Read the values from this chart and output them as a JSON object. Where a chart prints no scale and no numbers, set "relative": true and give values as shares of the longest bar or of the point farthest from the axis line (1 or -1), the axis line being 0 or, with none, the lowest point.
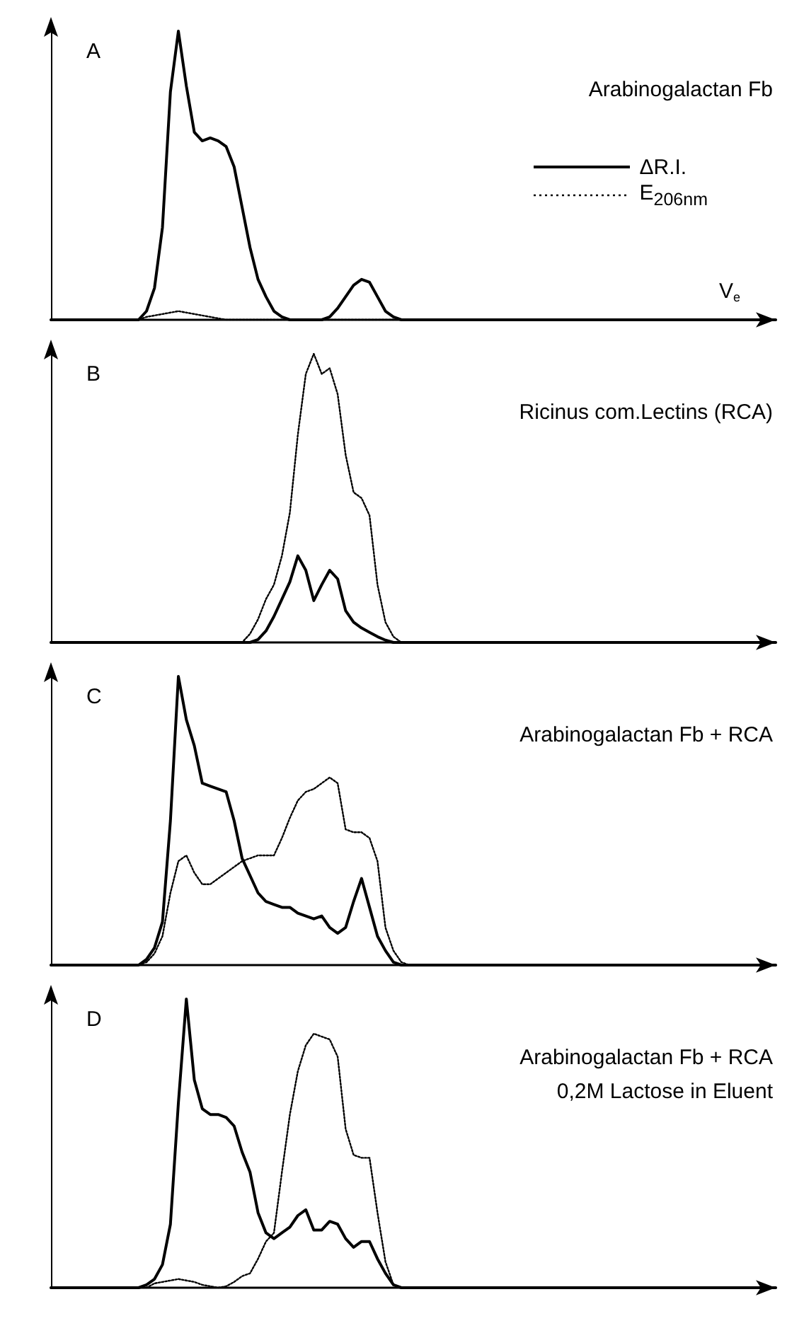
{
  "chart_data": [
    {
      "type": "line",
      "title": "A",
      "annotations": [
        "Arabinogalactan Fb"
      ],
      "xlabel": "V$_{e}$",
      "relative": true,
      "marker": "none",
      "legend": "right",
      "categories": [
        null,
        null,
        null,
        null,
        null,
        null,
        null,
        null,
        null,
        null,
        null,
        null,
        null,
        null,
        null,
        null,
        null,
        null,
        null,
        null,
        null,
        null,
        null,
        null,
        null,
        null,
        null,
        null,
        null,
        null,
        null,
        null,
        null,
        null,
        null,
        null,
        null,
        null,
        null,
        null,
        null,
        null,
        null,
        null,
        null,
        null,
        null,
        null,
        null,
        null,
        null,
        null,
        null,
        null,
        null,
        null,
        null,
        null,
        null,
        null,
        null,
        null,
        null,
        null,
        null,
        null,
        null,
        null,
        null,
        null,
        null,
        null,
        null,
        null,
        null,
        null,
        null,
        null,
        null,
        null,
        null,
        null,
        null,
        null,
        null,
        null,
        null,
        null,
        null,
        null,
        null,
        null
      ],
      "series": [
        {
          "name": "ΔR.I.",
          "color": "#000000",
          "line_style": "solid",
          "values": [
            0,
            0,
            0,
            0,
            0,
            0,
            0,
            0,
            0,
            0,
            0,
            0,
            0.03,
            0.11,
            0.32,
            0.79,
            1,
            0.81,
            0.65,
            0.62,
            0.63,
            0.62,
            0.6,
            0.53,
            0.39,
            0.25,
            0.14,
            0.08,
            0.03,
            0.01,
            0,
            0,
            0,
            0,
            0,
            0.01,
            0.04,
            0.08,
            0.12,
            0.14,
            0.13,
            0.08,
            0.03,
            0.01,
            0,
            0,
            0,
            0,
            0,
            0,
            0,
            0,
            0,
            0,
            0,
            0,
            0,
            0,
            0,
            0,
            0,
            0,
            0,
            0,
            0,
            0,
            0,
            0,
            0,
            0,
            0,
            0,
            0,
            0,
            0,
            0,
            0,
            0,
            0,
            0,
            0,
            0,
            0,
            0,
            0,
            0,
            0,
            0,
            0,
            0,
            0,
            0
          ]
        },
        {
          "name": "E$_{206nm}$",
          "color": "#000000",
          "line_style": "dotted",
          "values": [
            0,
            0,
            0,
            0,
            0,
            0,
            0,
            0,
            0,
            0,
            0,
            0,
            0.01,
            0.015,
            0.02,
            0.025,
            0.03,
            0.025,
            0.02,
            0.015,
            0.01,
            0.005,
            0,
            0,
            0,
            0,
            0,
            0,
            0,
            0,
            0,
            0,
            0,
            0,
            0,
            0,
            0,
            0,
            0,
            0,
            0,
            0,
            0,
            0,
            0,
            0,
            0,
            0,
            0,
            0,
            0,
            0,
            0,
            0,
            0,
            0,
            0,
            0,
            0,
            0,
            0,
            0,
            0,
            0,
            0,
            0,
            0,
            0,
            0,
            0,
            0,
            0,
            0,
            0,
            0,
            0,
            0,
            0,
            0,
            0,
            0,
            0,
            0,
            0,
            0,
            0,
            0,
            0,
            0,
            0,
            0,
            0
          ]
        }
      ]
    },
    {
      "type": "line",
      "title": "B",
      "annotations": [
        "Ricinus com.Lectins (RCA)"
      ],
      "relative": true,
      "marker": "none",
      "categories": [
        null,
        null,
        null,
        null,
        null,
        null,
        null,
        null,
        null,
        null,
        null,
        null,
        null,
        null,
        null,
        null,
        null,
        null,
        null,
        null,
        null,
        null,
        null,
        null,
        null,
        null,
        null,
        null,
        null,
        null,
        null,
        null,
        null,
        null,
        null,
        null,
        null,
        null,
        null,
        null,
        null,
        null,
        null,
        null,
        null,
        null,
        null,
        null,
        null,
        null,
        null,
        null,
        null,
        null,
        null,
        null,
        null,
        null,
        null,
        null,
        null,
        null,
        null,
        null,
        null,
        null,
        null,
        null,
        null,
        null,
        null,
        null,
        null,
        null,
        null,
        null,
        null,
        null,
        null,
        null,
        null,
        null,
        null,
        null,
        null,
        null,
        null,
        null,
        null,
        null,
        null,
        null
      ],
      "series": [
        {
          "color": "#000000",
          "line_style": "solid",
          "values": [
            0,
            0,
            0,
            0,
            0,
            0,
            0,
            0,
            0,
            0,
            0,
            0,
            0,
            0,
            0,
            0,
            0,
            0,
            0,
            0,
            0,
            0,
            0,
            0,
            0,
            0,
            0.01,
            0.04,
            0.09,
            0.15,
            0.21,
            0.3,
            0.25,
            0.145,
            0.2,
            0.25,
            0.22,
            0.11,
            0.07,
            0.05,
            0.035,
            0.02,
            0.008,
            0,
            0,
            0,
            0,
            0,
            0,
            0,
            0,
            0,
            0,
            0,
            0,
            0,
            0,
            0,
            0,
            0,
            0,
            0,
            0,
            0,
            0,
            0,
            0,
            0,
            0,
            0,
            0,
            0,
            0,
            0,
            0,
            0,
            0,
            0,
            0,
            0,
            0,
            0,
            0,
            0,
            0,
            0,
            0,
            0,
            0,
            0,
            0,
            0
          ]
        },
        {
          "color": "#000000",
          "line_style": "dotted",
          "values": [
            0,
            0,
            0,
            0,
            0,
            0,
            0,
            0,
            0,
            0,
            0,
            0,
            0,
            0,
            0,
            0,
            0,
            0,
            0,
            0,
            0,
            0,
            0,
            0,
            0,
            0.03,
            0.08,
            0.15,
            0.2,
            0.3,
            0.45,
            0.72,
            0.93,
            1,
            0.93,
            0.95,
            0.86,
            0.65,
            0.52,
            0.5,
            0.44,
            0.2,
            0.07,
            0.02,
            0,
            0,
            0,
            0,
            0,
            0,
            0,
            0,
            0,
            0,
            0,
            0,
            0,
            0,
            0,
            0,
            0,
            0,
            0,
            0,
            0,
            0,
            0,
            0,
            0,
            0,
            0,
            0,
            0,
            0,
            0,
            0,
            0,
            0,
            0,
            0,
            0,
            0,
            0,
            0,
            0,
            0,
            0,
            0,
            0,
            0,
            0,
            0
          ]
        }
      ]
    },
    {
      "type": "line",
      "title": "C",
      "annotations": [
        "Arabinogalactan Fb + RCA"
      ],
      "relative": true,
      "marker": "none",
      "categories": [
        null,
        null,
        null,
        null,
        null,
        null,
        null,
        null,
        null,
        null,
        null,
        null,
        null,
        null,
        null,
        null,
        null,
        null,
        null,
        null,
        null,
        null,
        null,
        null,
        null,
        null,
        null,
        null,
        null,
        null,
        null,
        null,
        null,
        null,
        null,
        null,
        null,
        null,
        null,
        null,
        null,
        null,
        null,
        null,
        null,
        null,
        null,
        null,
        null,
        null,
        null,
        null,
        null,
        null,
        null,
        null,
        null,
        null,
        null,
        null,
        null,
        null,
        null,
        null,
        null,
        null,
        null,
        null,
        null,
        null,
        null,
        null,
        null,
        null,
        null,
        null,
        null,
        null,
        null,
        null,
        null,
        null,
        null,
        null,
        null,
        null,
        null,
        null,
        null,
        null,
        null,
        null
      ],
      "series": [
        {
          "color": "#000000",
          "line_style": "solid",
          "values": [
            0,
            0,
            0,
            0,
            0,
            0,
            0,
            0,
            0,
            0,
            0,
            0,
            0.02,
            0.06,
            0.15,
            0.5,
            1,
            0.85,
            0.76,
            0.63,
            0.62,
            0.61,
            0.6,
            0.5,
            0.37,
            0.31,
            0.25,
            0.22,
            0.21,
            0.2,
            0.2,
            0.18,
            0.17,
            0.16,
            0.17,
            0.13,
            0.11,
            0.13,
            0.22,
            0.3,
            0.2,
            0.1,
            0.05,
            0.01,
            0,
            0,
            0,
            0,
            0,
            0,
            0,
            0,
            0,
            0,
            0,
            0,
            0,
            0,
            0,
            0,
            0,
            0,
            0,
            0,
            0,
            0,
            0,
            0,
            0,
            0,
            0,
            0,
            0,
            0,
            0,
            0,
            0,
            0,
            0,
            0,
            0,
            0,
            0,
            0,
            0,
            0,
            0,
            0,
            0,
            0,
            0,
            0
          ]
        },
        {
          "color": "#000000",
          "line_style": "dotted",
          "values": [
            0,
            0,
            0,
            0,
            0,
            0,
            0,
            0,
            0,
            0,
            0,
            0,
            0.01,
            0.04,
            0.1,
            0.25,
            0.36,
            0.38,
            0.32,
            0.28,
            0.28,
            0.3,
            0.32,
            0.34,
            0.36,
            0.37,
            0.38,
            0.38,
            0.38,
            0.44,
            0.51,
            0.57,
            0.6,
            0.61,
            0.63,
            0.65,
            0.63,
            0.47,
            0.46,
            0.46,
            0.44,
            0.36,
            0.13,
            0.05,
            0.01,
            0,
            0,
            0,
            0,
            0,
            0,
            0,
            0,
            0,
            0,
            0,
            0,
            0,
            0,
            0,
            0,
            0,
            0,
            0,
            0,
            0,
            0,
            0,
            0,
            0,
            0,
            0,
            0,
            0,
            0,
            0,
            0,
            0,
            0,
            0,
            0,
            0,
            0,
            0,
            0,
            0,
            0,
            0,
            0,
            0,
            0,
            0
          ]
        }
      ]
    },
    {
      "type": "line",
      "title": "D",
      "annotations": [
        "Arabinogalactan Fb + RCA",
        "0,2M Lactose in Eluent"
      ],
      "relative": true,
      "marker": "none",
      "categories": [
        null,
        null,
        null,
        null,
        null,
        null,
        null,
        null,
        null,
        null,
        null,
        null,
        null,
        null,
        null,
        null,
        null,
        null,
        null,
        null,
        null,
        null,
        null,
        null,
        null,
        null,
        null,
        null,
        null,
        null,
        null,
        null,
        null,
        null,
        null,
        null,
        null,
        null,
        null,
        null,
        null,
        null,
        null,
        null,
        null,
        null,
        null,
        null,
        null,
        null,
        null,
        null,
        null,
        null,
        null,
        null,
        null,
        null,
        null,
        null,
        null,
        null,
        null,
        null,
        null,
        null,
        null,
        null,
        null,
        null,
        null,
        null,
        null,
        null,
        null,
        null,
        null,
        null,
        null,
        null,
        null,
        null,
        null,
        null,
        null,
        null,
        null,
        null,
        null,
        null,
        null,
        null
      ],
      "series": [
        {
          "color": "#000000",
          "line_style": "solid",
          "values": [
            0,
            0,
            0,
            0,
            0,
            0,
            0,
            0,
            0,
            0,
            0,
            0,
            0.01,
            0.03,
            0.08,
            0.22,
            0.64,
            1,
            0.72,
            0.62,
            0.6,
            0.6,
            0.59,
            0.56,
            0.47,
            0.4,
            0.26,
            0.19,
            0.17,
            0.19,
            0.21,
            0.25,
            0.27,
            0.2,
            0.2,
            0.23,
            0.22,
            0.17,
            0.14,
            0.16,
            0.16,
            0.1,
            0.05,
            0.01,
            0,
            0,
            0,
            0,
            0,
            0,
            0,
            0,
            0,
            0,
            0,
            0,
            0,
            0,
            0,
            0,
            0,
            0,
            0,
            0,
            0,
            0,
            0,
            0,
            0,
            0,
            0,
            0,
            0,
            0,
            0,
            0,
            0,
            0,
            0,
            0,
            0,
            0,
            0,
            0,
            0,
            0,
            0,
            0,
            0,
            0,
            0,
            0
          ]
        },
        {
          "color": "#000000",
          "line_style": "dotted",
          "values": [
            0,
            0,
            0,
            0,
            0,
            0,
            0,
            0,
            0,
            0,
            0,
            0,
            0,
            0.015,
            0.02,
            0.025,
            0.03,
            0.025,
            0.02,
            0.01,
            0.005,
            0,
            0.005,
            0.02,
            0.04,
            0.05,
            0.1,
            0.16,
            0.19,
            0.4,
            0.6,
            0.75,
            0.84,
            0.88,
            0.87,
            0.86,
            0.8,
            0.55,
            0.46,
            0.45,
            0.45,
            0.26,
            0.09,
            0.01,
            0,
            0,
            0,
            0,
            0,
            0,
            0,
            0,
            0,
            0,
            0,
            0,
            0,
            0,
            0,
            0,
            0,
            0,
            0,
            0,
            0,
            0,
            0,
            0,
            0,
            0,
            0,
            0,
            0,
            0,
            0,
            0,
            0,
            0,
            0,
            0,
            0,
            0,
            0,
            0,
            0,
            0,
            0,
            0,
            0,
            0,
            0,
            0
          ]
        }
      ]
    }
  ]
}
